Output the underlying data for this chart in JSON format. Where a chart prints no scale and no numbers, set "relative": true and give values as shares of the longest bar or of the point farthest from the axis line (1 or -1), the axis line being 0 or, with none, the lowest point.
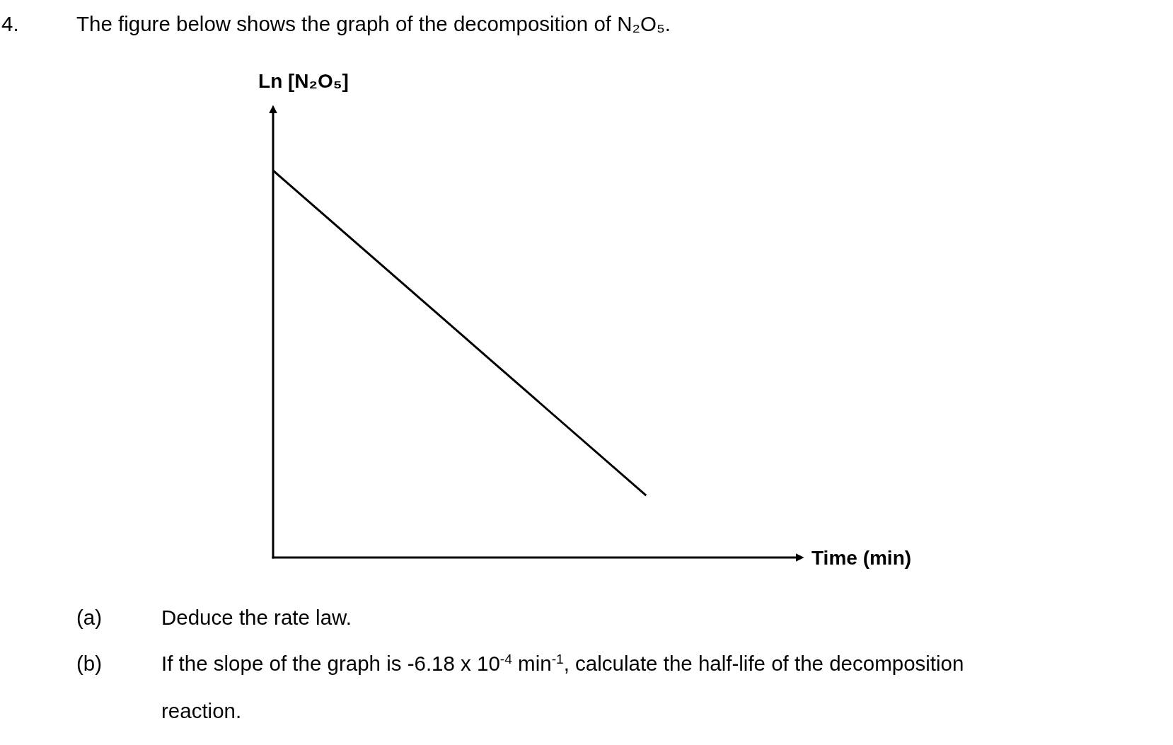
{
  "chart_data": {
    "type": "line",
    "title": "The figure below shows the graph of the decomposition of N₂O₅.",
    "xlabel": "Time (min)",
    "ylabel": "Ln [N₂O₅]",
    "relative": true,
    "categories": [
      null,
      null,
      null,
      null
    ],
    "series": [
      {
        "color": "#000000",
        "values": [
          1,
          0.58,
          0.16,
          null
        ]
      }
    ],
    "annotations": [
      "4.",
      "(a) Deduce the rate law.",
      "(b) If the slope of the graph is -6.18 x 10$^{-4}$ min$^{-1}$, calculate the half-life of the decomposition reaction."
    ]
  }
}
